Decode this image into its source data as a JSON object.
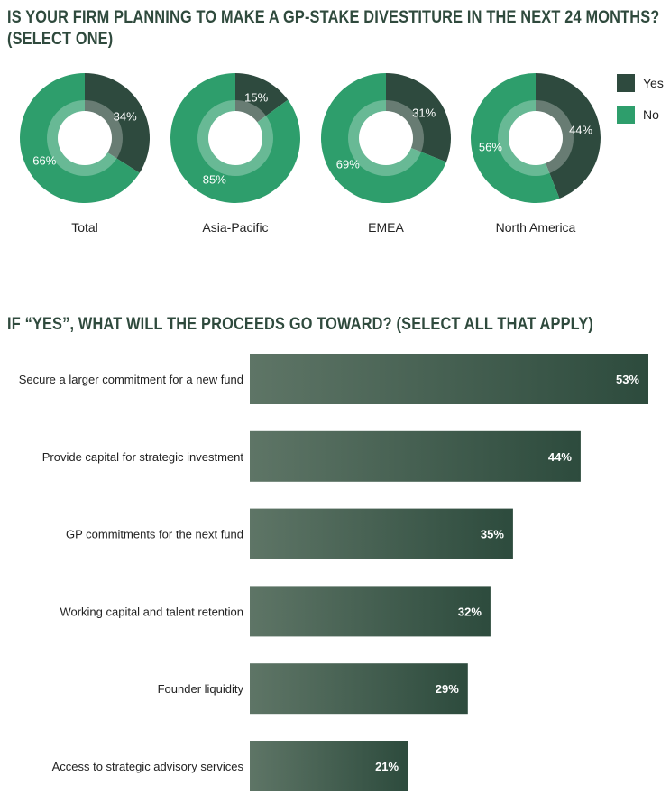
{
  "questions": {
    "q1": "IS YOUR FIRM PLANNING TO MAKE A GP-STAKE DIVESTITURE IN THE NEXT 24 MONTHS? (SELECT ONE)",
    "q1_line1": "IS YOUR FIRM PLANNING TO MAKE A GP-STAKE DIVESTITURE IN THE NEXT 24 MONTHS?",
    "q1_line2": "(SELECT ONE)",
    "q2": "IF “YES”, WHAT WILL THE PROCEEDS GO TOWARD? (SELECT ALL THAT APPLY)"
  },
  "colors": {
    "yes": "#2e4a3e",
    "no": "#2e9e6c",
    "title": "#2f4a3d",
    "bar_start": "#5e7566",
    "bar_end": "#2d4b3d"
  },
  "legend": [
    {
      "label": "Yes",
      "color": "#2e4a3e"
    },
    {
      "label": "No",
      "color": "#2e9e6c"
    }
  ],
  "chart_data": [
    {
      "type": "pie",
      "subtype": "donut",
      "series_names": [
        "Yes",
        "No"
      ],
      "groups": [
        {
          "name": "Total",
          "yes": 34,
          "no": 66,
          "yes_label": "34%",
          "no_label": "66%"
        },
        {
          "name": "Asia-Pacific",
          "yes": 15,
          "no": 85,
          "yes_label": "15%",
          "no_label": "85%"
        },
        {
          "name": "EMEA",
          "yes": 31,
          "no": 69,
          "yes_label": "31%",
          "no_label": "69%"
        },
        {
          "name": "North America",
          "yes": 44,
          "no": 56,
          "yes_label": "44%",
          "no_label": "56%"
        }
      ],
      "legend_position": "top-right"
    },
    {
      "type": "bar",
      "orientation": "horizontal",
      "categories": [
        "Secure a larger commitment for a new fund",
        "Provide capital for strategic investment",
        "GP commitments for the next fund",
        "Working capital and talent retention",
        "Founder liquidity",
        "Access to strategic advisory services"
      ],
      "values": [
        53,
        44,
        35,
        32,
        29,
        21
      ],
      "value_labels": [
        "53%",
        "44%",
        "35%",
        "32%",
        "29%",
        "21%"
      ],
      "xlim": [
        0,
        53
      ],
      "grid": false
    }
  ]
}
